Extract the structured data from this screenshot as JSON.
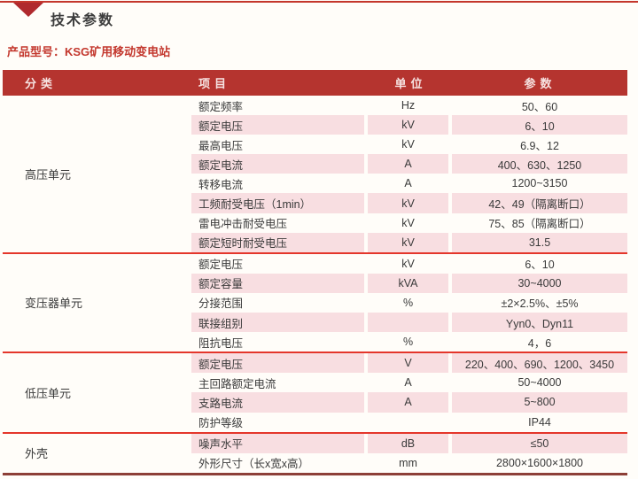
{
  "page": {
    "section_title": "技术参数",
    "product_label": "产品型号：KSG矿用移动变电站"
  },
  "table": {
    "headers": {
      "category": "分类",
      "item": "项目",
      "unit": "单位",
      "param": "参数"
    },
    "sections": [
      {
        "category": "高压单元",
        "rows": [
          {
            "item": "额定频率",
            "unit": "Hz",
            "param": "50、60"
          },
          {
            "item": "额定电压",
            "unit": "kV",
            "param": "6、10"
          },
          {
            "item": "最高电压",
            "unit": "kV",
            "param": "6.9、12"
          },
          {
            "item": "额定电流",
            "unit": "A",
            "param": "400、630、1250"
          },
          {
            "item": "转移电流",
            "unit": "A",
            "param": "1200~3150"
          },
          {
            "item": "工频耐受电压（1min）",
            "unit": "kV",
            "param": "42、49（隔离断口）"
          },
          {
            "item": "雷电冲击耐受电压",
            "unit": "kV",
            "param": "75、85（隔离断口）"
          },
          {
            "item": "额定短时耐受电压",
            "unit": "kV",
            "param": "31.5"
          }
        ]
      },
      {
        "category": "变压器单元",
        "rows": [
          {
            "item": "额定电压",
            "unit": "kV",
            "param": "6、10"
          },
          {
            "item": "额定容量",
            "unit": "kVA",
            "param": "30~4000"
          },
          {
            "item": "分接范围",
            "unit": "%",
            "param": "±2×2.5%、±5%"
          },
          {
            "item": "联接组别",
            "unit": "",
            "param": "Yyn0、Dyn11"
          },
          {
            "item": "阻抗电压",
            "unit": "%",
            "param": "4，6"
          }
        ]
      },
      {
        "category": "低压单元",
        "rows": [
          {
            "item": "额定电压",
            "unit": "V",
            "param": "220、400、690、1200、3450"
          },
          {
            "item": "主回路额定电流",
            "unit": "A",
            "param": "50~4000"
          },
          {
            "item": "支路电流",
            "unit": "A",
            "param": "5~800"
          },
          {
            "item": "防护等级",
            "unit": "",
            "param": "IP44"
          }
        ]
      },
      {
        "category": "外壳",
        "rows": [
          {
            "item": "噪声水平",
            "unit": "dB",
            "param": "≤50"
          },
          {
            "item": "外形尺寸（长x宽x高）",
            "unit": "mm",
            "param": "2800×1600×1800"
          }
        ]
      }
    ]
  },
  "colors": {
    "header_bg": "#b5342f",
    "header_text": "#f6e2e1",
    "row_pink": "#f8dee1",
    "section_divider": "#e4362b",
    "top_rule": "#c4362c",
    "triangle_marker": "#b02a2e",
    "accent_text": "#c3372d",
    "body_text": "#3a3a3a",
    "page_bg": "#fffdf9",
    "bottom_rule": "#8d3f37"
  }
}
